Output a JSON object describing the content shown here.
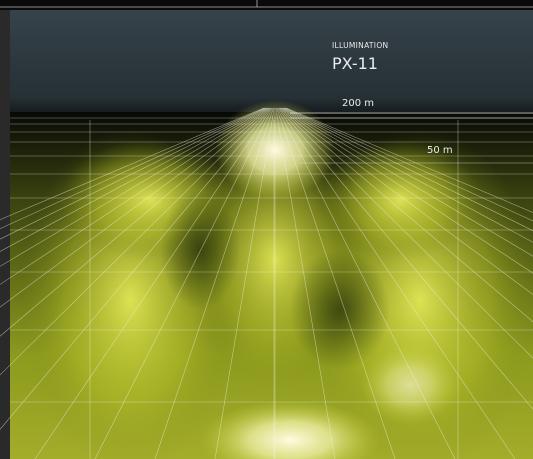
{
  "header": {
    "label": "ILLUMINATION",
    "title": "PX-11"
  },
  "distances": [
    "200 m",
    "50 m"
  ]
}
